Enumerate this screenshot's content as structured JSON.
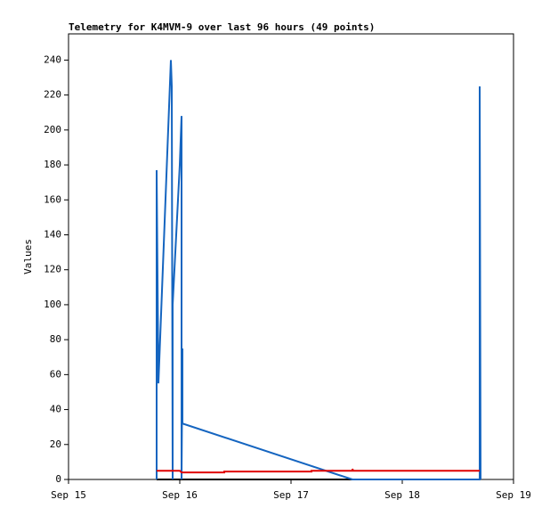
{
  "chart_data": {
    "type": "line",
    "title": "Telemetry for K4MVM-9 over last 96 hours (49 points)",
    "y_label": "Values",
    "xlim": [
      0,
      4
    ],
    "xticks": [
      {
        "value": 0,
        "label": "Sep 15"
      },
      {
        "value": 1,
        "label": "Sep 16"
      },
      {
        "value": 2,
        "label": "Sep 17"
      },
      {
        "value": 3,
        "label": "Sep 18"
      },
      {
        "value": 4,
        "label": "Sep 19"
      }
    ],
    "ylim": [
      0,
      255
    ],
    "yticks": [
      0,
      20,
      40,
      60,
      80,
      100,
      120,
      140,
      160,
      180,
      200,
      220,
      240
    ],
    "grid": false,
    "series": [
      {
        "color": "#000000",
        "x": [
          0.792,
          3.696
        ],
        "values": [
          0,
          0
        ]
      },
      {
        "color": "#1565c0",
        "x": [
          0.792,
          0.792,
          0.808,
          0.92,
          0.928,
          0.936,
          0.936,
          1.0,
          1.016,
          1.016,
          1.024,
          1.024,
          2.552,
          3.696,
          3.696,
          3.704
        ],
        "values": [
          0,
          177,
          55,
          240,
          225,
          0,
          100,
          180,
          208,
          0,
          75,
          32,
          0,
          0,
          225,
          0
        ]
      },
      {
        "color": "#e00000",
        "x": [
          0.792,
          1.0,
          1.016,
          1.4,
          1.4,
          2.184,
          2.184,
          2.552,
          2.552,
          2.56,
          3.696
        ],
        "values": [
          5,
          5,
          4,
          4,
          4.5,
          4.5,
          5,
          5,
          6,
          5,
          5
        ]
      }
    ]
  }
}
